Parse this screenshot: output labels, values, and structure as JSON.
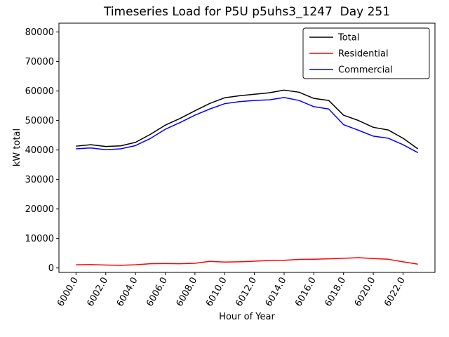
{
  "title": "Timeseries Load for P5U p5uhs3_1247  Day 251",
  "chart_data": {
    "type": "line",
    "title": "Timeseries Load for P5U p5uhs3_1247  Day 251",
    "xlabel": "Hour of Year",
    "ylabel": "kW total",
    "grid": false,
    "legend_position": "upper right",
    "xlim": [
      5998.85,
      6024.15
    ],
    "ylim": [
      -1500,
      83000
    ],
    "xticks": [
      6000,
      6002,
      6004,
      6006,
      6008,
      6010,
      6012,
      6014,
      6016,
      6018,
      6020,
      6022
    ],
    "xtick_labels": [
      "6000.0",
      "6002.0",
      "6004.0",
      "6006.0",
      "6008.0",
      "6010.0",
      "6012.0",
      "6014.0",
      "6016.0",
      "6018.0",
      "6020.0",
      "6022.0"
    ],
    "yticks": [
      0,
      10000,
      20000,
      30000,
      40000,
      50000,
      60000,
      70000,
      80000
    ],
    "ytick_labels": [
      "0",
      "10000",
      "20000",
      "30000",
      "40000",
      "50000",
      "60000",
      "70000",
      "80000"
    ],
    "x": [
      6000,
      6001,
      6002,
      6003,
      6004,
      6005,
      6006,
      6007,
      6008,
      6009,
      6010,
      6011,
      6012,
      6013,
      6014,
      6015,
      6016,
      6017,
      6018,
      6019,
      6020,
      6021,
      6022,
      6023
    ],
    "series": [
      {
        "name": "Total",
        "color": "#000000",
        "values": [
          41300,
          41800,
          41200,
          41400,
          42600,
          45300,
          48400,
          50700,
          53300,
          55800,
          57700,
          58400,
          58900,
          59400,
          60300,
          59600,
          57500,
          56800,
          51800,
          50000,
          47700,
          46800,
          44000,
          40400
        ]
      },
      {
        "name": "Residential",
        "color": "#ff0000",
        "values": [
          1100,
          1150,
          1000,
          900,
          1100,
          1450,
          1500,
          1450,
          1600,
          2250,
          2000,
          2100,
          2300,
          2550,
          2600,
          2900,
          2950,
          3100,
          3300,
          3500,
          3200,
          2950,
          2100,
          1300
        ]
      },
      {
        "name": "Commercial",
        "color": "#0000ff",
        "values": [
          40400,
          40700,
          40100,
          40400,
          41500,
          43900,
          47000,
          49300,
          51800,
          53900,
          55700,
          56400,
          56800,
          57000,
          57800,
          56800,
          54700,
          53900,
          48600,
          46700,
          44700,
          44000,
          41800,
          39100
        ]
      }
    ]
  }
}
